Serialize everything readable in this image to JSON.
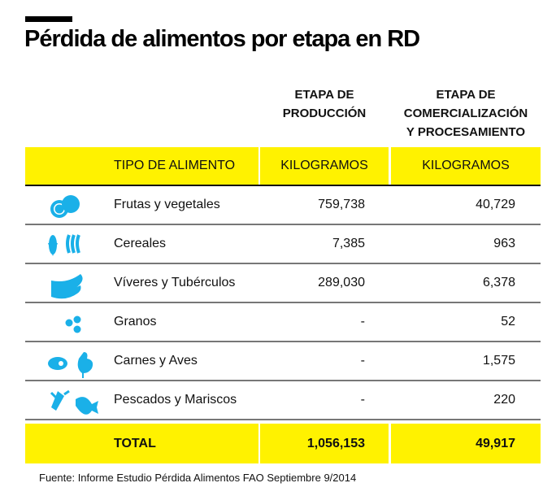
{
  "title": "Pérdida de alimentos por etapa en RD",
  "columns": {
    "prod": [
      "ETAPA DE",
      "PRODUCCIÓN"
    ],
    "com": [
      "ETAPA DE",
      "COMERCIALIZACIÓN",
      "Y PROCESAMIENTO"
    ]
  },
  "header": {
    "tipo": "TIPO DE ALIMENTO",
    "kg1": "KILOGRAMOS",
    "kg2": "KILOGRAMOS"
  },
  "rows": [
    {
      "name": "Frutas y vegetales",
      "prod": "759,738",
      "com": "40,729",
      "icon": "fruit-icon"
    },
    {
      "name": "Cereales",
      "prod": "7,385",
      "com": "963",
      "icon": "corn-wheat-icon"
    },
    {
      "name": "Víveres y Tubérculos",
      "prod": "289,030",
      "com": "6,378",
      "icon": "banana-icon"
    },
    {
      "name": "Granos",
      "prod": "-",
      "com": "52",
      "icon": "beans-icon"
    },
    {
      "name": "Carnes y Aves",
      "prod": "-",
      "com": "1,575",
      "icon": "meat-chicken-icon"
    },
    {
      "name": "Pescados y Mariscos",
      "prod": "-",
      "com": "220",
      "icon": "lobster-fish-icon"
    }
  ],
  "total": {
    "label": "TOTAL",
    "prod": "1,056,153",
    "com": "49,917"
  },
  "source": "Fuente: Informe Estudio Pérdida Alimentos FAO Septiembre 9/2014",
  "colors": {
    "highlight": "#fff200",
    "icon": "#1ab0e8"
  }
}
